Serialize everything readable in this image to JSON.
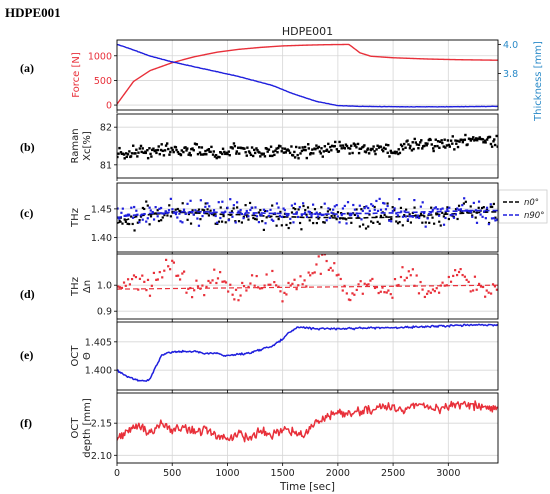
{
  "page_title": "HDPE001",
  "colors": {
    "force": "#e8303a",
    "thickness": "#1f1fdd",
    "thickness_axis": "#2a8ac8",
    "raman": "#000000",
    "n0": "#000000",
    "n90": "#1f1fdd",
    "dn": "#e8303a",
    "oct_theta": "#1f1fdd",
    "oct_depth": "#e8303a"
  },
  "chart_data": [
    {
      "id": "a",
      "panel_label": "(a)",
      "type": "line",
      "title": "HDPE001",
      "ylabel": "Force [N]",
      "y2label": "Thickness [mm]",
      "xlim": [
        0,
        3450
      ],
      "ylim": [
        -100,
        1320
      ],
      "y2lim": [
        3.55,
        4.03
      ],
      "yticks": [
        "0",
        "500",
        "1000"
      ],
      "y2ticks": [
        "3.8",
        "4.0"
      ],
      "grid": true,
      "series": [
        {
          "axis": "left",
          "color_key": "force",
          "x": [
            0,
            150,
            300,
            500,
            700,
            900,
            1100,
            1300,
            1500,
            1700,
            1900,
            2100,
            2130,
            2200,
            2300,
            2500,
            2800,
            3100,
            3450
          ],
          "values": [
            20,
            480,
            700,
            860,
            980,
            1070,
            1130,
            1170,
            1200,
            1215,
            1225,
            1230,
            1180,
            1060,
            990,
            960,
            935,
            920,
            910
          ]
        },
        {
          "axis": "right",
          "color_key": "thickness",
          "x": [
            0,
            100,
            300,
            500,
            800,
            1100,
            1400,
            1600,
            1800,
            2000,
            2200,
            2600,
            3000,
            3450
          ],
          "values": [
            4.0,
            3.975,
            3.92,
            3.88,
            3.83,
            3.78,
            3.72,
            3.66,
            3.61,
            3.58,
            3.575,
            3.572,
            3.572,
            3.575
          ]
        }
      ]
    },
    {
      "id": "b",
      "panel_label": "(b)",
      "type": "scatter",
      "ylabel": [
        "Raman",
        "Xc[%]"
      ],
      "xlim": [
        0,
        3450
      ],
      "ylim": [
        80.65,
        82.35
      ],
      "yticks": [
        "81",
        "82"
      ],
      "grid": true,
      "series": [
        {
          "color_key": "raman",
          "shape": "square",
          "x": [
            0,
            100,
            200,
            300,
            400,
            500,
            600,
            700,
            800,
            900,
            1000,
            1100,
            1200,
            1300,
            1400,
            1500,
            1600,
            1700,
            1800,
            1900,
            2000,
            2100,
            2200,
            2300,
            2400,
            2500,
            2600,
            2700,
            2800,
            2900,
            3000,
            3100,
            3200,
            3300,
            3450
          ],
          "values": [
            81.25,
            81.35,
            81.4,
            81.35,
            81.45,
            81.4,
            81.35,
            81.4,
            81.4,
            81.3,
            81.35,
            81.4,
            81.35,
            81.3,
            81.4,
            81.35,
            81.3,
            81.35,
            81.4,
            81.4,
            81.45,
            81.45,
            81.4,
            81.4,
            81.45,
            81.35,
            81.5,
            81.55,
            81.5,
            81.55,
            81.55,
            81.6,
            81.65,
            81.7,
            81.6
          ]
        }
      ]
    },
    {
      "id": "c",
      "panel_label": "(c)",
      "type": "scatter",
      "ylabel": [
        "THz",
        "n"
      ],
      "xlim": [
        0,
        3450
      ],
      "ylim": [
        1.375,
        1.495
      ],
      "yticks": [
        "1.40",
        "1.45"
      ],
      "grid": true,
      "legend": {
        "placement": "outside-right",
        "entries": [
          {
            "series": 0,
            "label": "n0°"
          },
          {
            "series": 1,
            "label": "n90°"
          }
        ]
      },
      "series": [
        {
          "color_key": "n0",
          "shape": "square",
          "x": [
            0,
            100,
            200,
            300,
            400,
            500,
            600,
            700,
            800,
            900,
            1000,
            1100,
            1200,
            1300,
            1400,
            1500,
            1600,
            1700,
            1800,
            1900,
            2000,
            2100,
            2200,
            2300,
            2400,
            2500,
            2600,
            2700,
            2800,
            2900,
            3000,
            3100,
            3200,
            3300,
            3450
          ],
          "values": [
            1.425,
            1.432,
            1.438,
            1.44,
            1.442,
            1.443,
            1.444,
            1.443,
            1.442,
            1.441,
            1.44,
            1.44,
            1.439,
            1.438,
            1.437,
            1.436,
            1.436,
            1.435,
            1.435,
            1.435,
            1.434,
            1.434,
            1.434,
            1.435,
            1.435,
            1.436,
            1.437,
            1.438,
            1.439,
            1.44,
            1.441,
            1.442,
            1.443,
            1.444,
            1.445
          ]
        },
        {
          "color_key": "n90",
          "shape": "square",
          "x": [
            0,
            100,
            200,
            300,
            400,
            500,
            600,
            700,
            800,
            900,
            1000,
            1100,
            1200,
            1300,
            1400,
            1500,
            1600,
            1700,
            1800,
            1900,
            2000,
            2100,
            2200,
            2300,
            2400,
            2500,
            2600,
            2700,
            2800,
            2900,
            3000,
            3100,
            3200,
            3300,
            3450
          ],
          "values": [
            1.435,
            1.438,
            1.44,
            1.442,
            1.443,
            1.444,
            1.445,
            1.445,
            1.445,
            1.444,
            1.444,
            1.443,
            1.443,
            1.443,
            1.442,
            1.442,
            1.441,
            1.441,
            1.441,
            1.441,
            1.441,
            1.442,
            1.442,
            1.442,
            1.443,
            1.443,
            1.444,
            1.444,
            1.445,
            1.445,
            1.446,
            1.446,
            1.447,
            1.447,
            1.447
          ]
        }
      ]
    },
    {
      "id": "d",
      "panel_label": "(d)",
      "type": "scatter",
      "ylabel": [
        "THz",
        "Δn"
      ],
      "xlim": [
        0,
        3450
      ],
      "ylim": [
        0.87,
        1.12
      ],
      "yticks": [
        "0.9",
        "1.0"
      ],
      "grid": true,
      "series": [
        {
          "color_key": "dn",
          "shape": "square",
          "x": [
            0,
            100,
            200,
            300,
            400,
            500,
            600,
            700,
            800,
            900,
            1000,
            1100,
            1200,
            1300,
            1400,
            1500,
            1600,
            1700,
            1800,
            1900,
            2000,
            2100,
            2200,
            2300,
            2400,
            2500,
            2600,
            2700,
            2800,
            2900,
            3000,
            3100,
            3200,
            3300,
            3450
          ],
          "values": [
            0.98,
            1.0,
            1.02,
            0.99,
            1.05,
            1.08,
            1.02,
            0.97,
            1.0,
            1.03,
            0.98,
            0.96,
            1.01,
            0.99,
            1.04,
            0.97,
            1.0,
            1.02,
            1.07,
            1.09,
            1.03,
            0.95,
            0.99,
            1.0,
            0.97,
            0.98,
            1.05,
            1.02,
            0.96,
            1.0,
            1.03,
            1.06,
            1.01,
            0.99,
            0.97
          ]
        },
        {
          "color_key": "dn",
          "style": "dashed",
          "x": [
            0,
            3450
          ],
          "values": [
            0.985,
            1.0
          ]
        }
      ]
    },
    {
      "id": "e",
      "panel_label": "(e)",
      "type": "line",
      "ylabel": [
        "OCT",
        "Θ"
      ],
      "xlim": [
        0,
        3450
      ],
      "ylim": [
        1.3965,
        1.4085
      ],
      "yticks": [
        "1.400",
        "1.405"
      ],
      "grid": true,
      "series": [
        {
          "color_key": "oct_theta",
          "x": [
            0,
            100,
            200,
            250,
            300,
            350,
            400,
            450,
            500,
            600,
            700,
            800,
            900,
            1000,
            1100,
            1200,
            1300,
            1400,
            1500,
            1550,
            1600,
            1650,
            1700,
            1800,
            2000,
            2200,
            2500,
            2800,
            3000,
            3200,
            3400,
            3450
          ],
          "values": [
            1.4,
            1.3988,
            1.3982,
            1.398,
            1.3985,
            1.4005,
            1.4025,
            1.403,
            1.4032,
            1.4033,
            1.4033,
            1.403,
            1.403,
            1.4025,
            1.4028,
            1.403,
            1.4036,
            1.4042,
            1.4055,
            1.4065,
            1.4072,
            1.4076,
            1.4075,
            1.4073,
            1.4073,
            1.4074,
            1.4075,
            1.4077,
            1.4078,
            1.408,
            1.408,
            1.408
          ]
        }
      ]
    },
    {
      "id": "f",
      "panel_label": "(f)",
      "type": "line",
      "ylabel": [
        "OCT",
        "depth [mm]"
      ],
      "xlim": [
        0,
        3450
      ],
      "ylim": [
        2.088,
        2.197
      ],
      "yticks": [
        "2.10",
        "2.15"
      ],
      "grid": true,
      "xlabel": "Time [sec]",
      "xticks": [
        "0",
        "500",
        "1000",
        "1500",
        "2000",
        "2500",
        "3000"
      ],
      "series": [
        {
          "color_key": "oct_depth",
          "x": [
            0,
            100,
            200,
            300,
            400,
            500,
            600,
            700,
            800,
            900,
            1000,
            1100,
            1200,
            1300,
            1400,
            1500,
            1600,
            1700,
            1800,
            1900,
            2000,
            2100,
            2200,
            2300,
            2400,
            2500,
            2600,
            2700,
            2800,
            2900,
            3000,
            3100,
            3200,
            3300,
            3450
          ],
          "values": [
            2.125,
            2.14,
            2.145,
            2.135,
            2.15,
            2.14,
            2.145,
            2.135,
            2.14,
            2.13,
            2.125,
            2.135,
            2.125,
            2.14,
            2.13,
            2.14,
            2.135,
            2.13,
            2.15,
            2.16,
            2.165,
            2.165,
            2.17,
            2.17,
            2.175,
            2.175,
            2.17,
            2.178,
            2.175,
            2.172,
            2.175,
            2.18,
            2.178,
            2.175,
            2.175
          ]
        }
      ]
    }
  ]
}
